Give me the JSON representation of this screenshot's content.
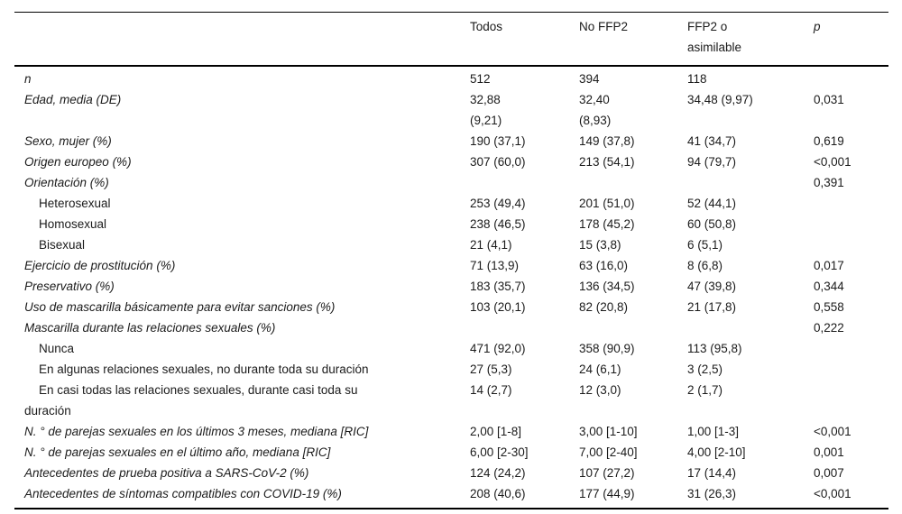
{
  "accent_colors": {
    "text": "#1b1b1b",
    "rule": "#000000",
    "background": "#ffffff"
  },
  "table": {
    "columns": [
      {
        "key": "label",
        "label": ""
      },
      {
        "key": "todos",
        "label": "Todos"
      },
      {
        "key": "no_ffp2",
        "label": "No FFP2"
      },
      {
        "key": "ffp2_asimilable",
        "label": "FFP2 o\nasimilable"
      },
      {
        "key": "p",
        "label": "p"
      }
    ],
    "rows": [
      {
        "style": "main",
        "label": "n",
        "values": [
          "512",
          "394",
          "118",
          ""
        ]
      },
      {
        "style": "main",
        "label": "Edad, media (DE)",
        "values": [
          "32,88\n(9,21)",
          "32,40\n(8,93)",
          "34,48 (9,97)",
          "0,031"
        ]
      },
      {
        "style": "main",
        "label": "Sexo, mujer (%)",
        "values": [
          "190 (37,1)",
          "149 (37,8)",
          "41 (34,7)",
          "0,619"
        ]
      },
      {
        "style": "main",
        "label": "Origen europeo (%)",
        "values": [
          "307 (60,0)",
          "213 (54,1)",
          "94 (79,7)",
          "<0,001"
        ]
      },
      {
        "style": "main",
        "label": "Orientación (%)",
        "values": [
          "",
          "",
          "",
          "0,391"
        ]
      },
      {
        "style": "sub",
        "label": "Heterosexual",
        "values": [
          "253 (49,4)",
          "201 (51,0)",
          "52 (44,1)",
          ""
        ]
      },
      {
        "style": "sub",
        "label": "Homosexual",
        "values": [
          "238 (46,5)",
          "178 (45,2)",
          "60 (50,8)",
          ""
        ]
      },
      {
        "style": "sub",
        "label": "Bisexual",
        "values": [
          "21 (4,1)",
          "15 (3,8)",
          "6 (5,1)",
          ""
        ]
      },
      {
        "style": "main",
        "label": "Ejercicio de prostitución (%)",
        "values": [
          "71 (13,9)",
          "63 (16,0)",
          "8 (6,8)",
          "0,017"
        ]
      },
      {
        "style": "main",
        "label": "Preservativo (%)",
        "values": [
          "183 (35,7)",
          "136 (34,5)",
          "47 (39,8)",
          "0,344"
        ]
      },
      {
        "style": "main",
        "label": "Uso de mascarilla básicamente para evitar sanciones (%)",
        "values": [
          "103 (20,1)",
          "82 (20,8)",
          "21 (17,8)",
          "0,558"
        ]
      },
      {
        "style": "main",
        "label": "Mascarilla durante las relaciones sexuales (%)",
        "values": [
          "",
          "",
          "",
          "0,222"
        ]
      },
      {
        "style": "sub",
        "label": "Nunca",
        "values": [
          "471 (92,0)",
          "358 (90,9)",
          "113 (95,8)",
          ""
        ]
      },
      {
        "style": "sub",
        "label": "En algunas relaciones sexuales, no durante toda su duración",
        "values": [
          "27 (5,3)",
          "24 (6,1)",
          "3 (2,5)",
          ""
        ]
      },
      {
        "style": "sub",
        "label": "En casi todas las relaciones sexuales, durante casi toda su\nduración",
        "values": [
          "14 (2,7)",
          "12 (3,0)",
          "2 (1,7)",
          ""
        ]
      },
      {
        "style": "main",
        "label": "N. ° de parejas sexuales en los últimos 3 meses, mediana [RIC]",
        "values": [
          "2,00 [1-8]",
          "3,00 [1-10]",
          "1,00 [1-3]",
          "<0,001"
        ]
      },
      {
        "style": "main",
        "label": "N. ° de parejas sexuales en el último año, mediana [RIC]",
        "values": [
          "6,00 [2-30]",
          "7,00 [2-40]",
          "4,00 [2-10]",
          "0,001"
        ]
      },
      {
        "style": "main",
        "label": "Antecedentes de prueba positiva a SARS-CoV-2 (%)",
        "values": [
          "124 (24,2)",
          "107 (27,2)",
          "17 (14,4)",
          "0,007"
        ]
      },
      {
        "style": "main",
        "label": "Antecedentes de síntomas compatibles con COVID-19 (%)",
        "values": [
          "208 (40,6)",
          "177 (44,9)",
          "31 (26,3)",
          "<0,001"
        ]
      }
    ]
  }
}
